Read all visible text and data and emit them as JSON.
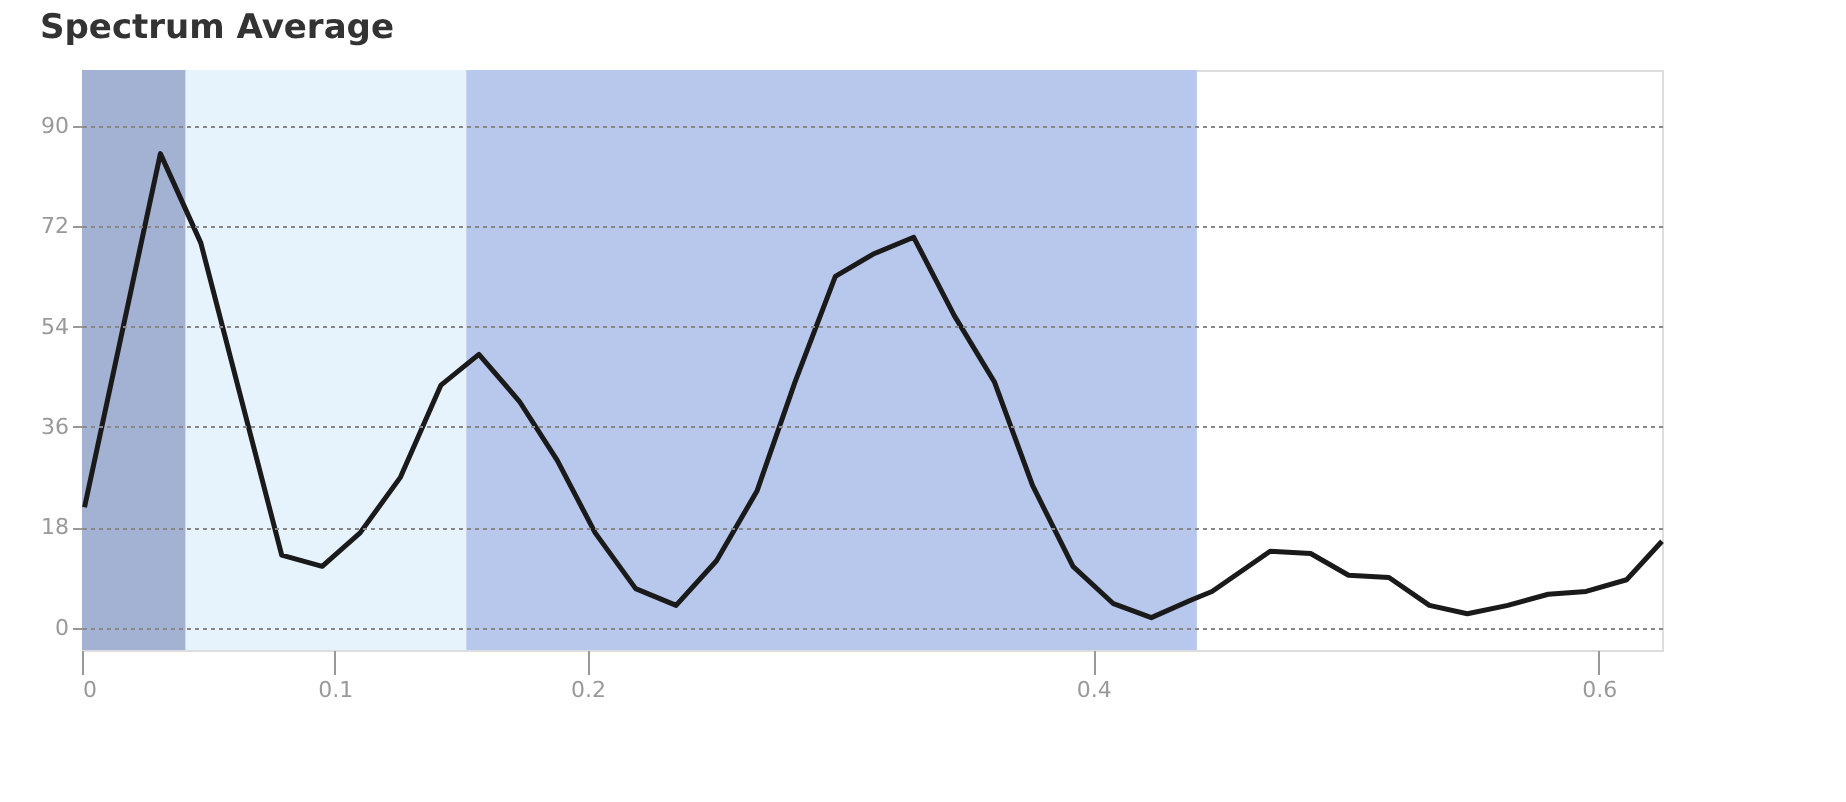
{
  "chart_data": {
    "type": "line",
    "title": "Spectrum Average",
    "x": [
      0.001,
      0.031,
      0.047,
      0.079,
      0.095,
      0.11,
      0.126,
      0.142,
      0.157,
      0.173,
      0.188,
      0.203,
      0.219,
      0.235,
      0.251,
      0.267,
      0.282,
      0.298,
      0.313,
      0.329,
      0.345,
      0.361,
      0.376,
      0.392,
      0.408,
      0.423,
      0.439,
      0.447,
      0.47,
      0.486,
      0.501,
      0.517,
      0.533,
      0.548,
      0.564,
      0.58,
      0.595,
      0.611,
      0.625
    ],
    "series": [
      {
        "color": "#1a1a1a",
        "values": [
          21.6,
          85,
          69,
          13,
          11,
          17,
          27,
          43.5,
          49,
          40.6,
          30,
          17,
          7,
          4,
          12,
          24.5,
          44,
          63,
          67,
          70,
          56,
          44,
          25.5,
          11,
          4.3,
          1.8,
          5,
          6.5,
          13.7,
          13.3,
          9.4,
          9,
          4,
          2.5,
          4,
          6,
          6.5,
          8.6,
          15.5
        ]
      }
    ],
    "xlim": [
      0,
      0.625
    ],
    "xticks": [
      0,
      0.1,
      0.2,
      0.4,
      0.6
    ],
    "ylim": [
      -4,
      100
    ],
    "yticks": [
      0,
      18,
      36,
      54,
      72,
      90
    ],
    "bands": [
      {
        "axis": "x",
        "from": 0,
        "to": 0.041,
        "color": "#a3b1d2"
      },
      {
        "axis": "x",
        "from": 0.041,
        "to": 0.152,
        "color": "#e6f3fc"
      },
      {
        "axis": "x",
        "from": 0.152,
        "to": 0.441,
        "color": "#b8c8ec"
      }
    ],
    "grid": "y",
    "marker": "none",
    "line_style": "solid"
  }
}
